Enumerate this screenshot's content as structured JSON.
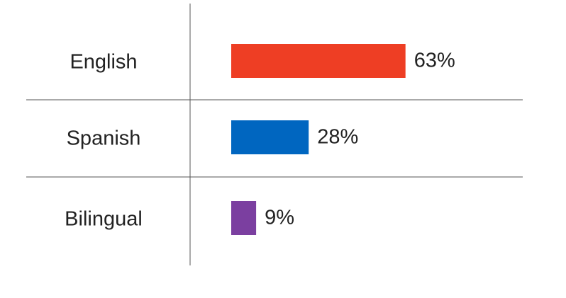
{
  "chart_data": {
    "type": "bar",
    "orientation": "horizontal",
    "categories": [
      "English",
      "Spanish",
      "Bilingual"
    ],
    "values": [
      63,
      28,
      9
    ],
    "value_labels": [
      "63%",
      "28%",
      "9%"
    ],
    "colors": [
      "#ee3e24",
      "#0066c0",
      "#7b3fa0"
    ]
  }
}
